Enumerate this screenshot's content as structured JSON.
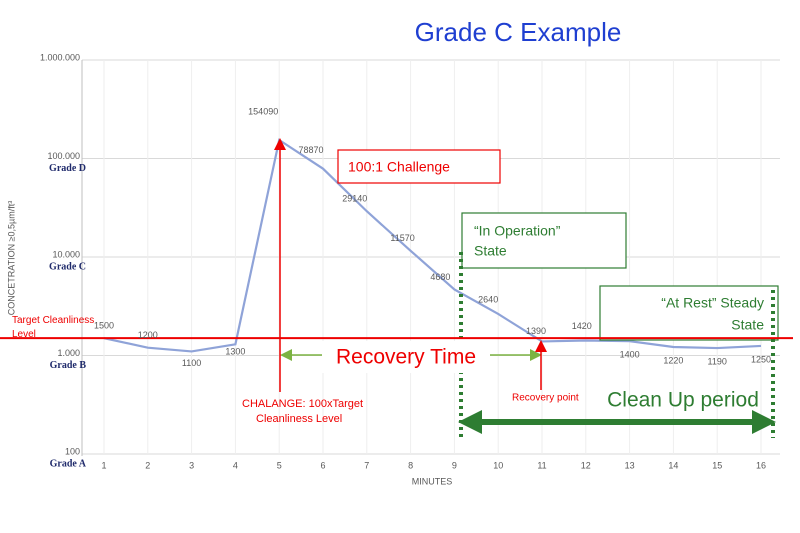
{
  "chart_data": {
    "type": "line",
    "title": "Grade C Example",
    "x_label": "MINUTES",
    "y_label": "CONCETRATION  ≥0,5µm/ft³",
    "x": [
      1,
      2,
      3,
      4,
      5,
      6,
      7,
      8,
      9,
      10,
      11,
      12,
      13,
      14,
      15,
      16
    ],
    "xlim": [
      1,
      16
    ],
    "xticks": [
      1,
      2,
      3,
      4,
      5,
      6,
      7,
      8,
      9,
      10,
      11,
      12,
      13,
      14,
      15,
      16
    ],
    "series": [
      {
        "color": "#8fa3d8",
        "values": [
          1500,
          1200,
          1100,
          1300,
          154090,
          78870,
          29140,
          11570,
          4680,
          2640,
          1390,
          1420,
          1400,
          1220,
          1190,
          1250
        ]
      }
    ],
    "log_y": true,
    "ylim": [
      100,
      1000000
    ],
    "yticks": [
      100,
      {
        "value": 1000,
        "label": "1.000"
      },
      {
        "value": 10000,
        "label": "10.000"
      },
      {
        "value": 100000,
        "label": "100.000"
      },
      {
        "value": 1000000,
        "label": "1.000.000"
      }
    ],
    "grid": true,
    "grade_labels": [
      {
        "value": 100,
        "label": "Grade A"
      },
      {
        "value": 1000,
        "label": "Grade B"
      },
      {
        "value": 10000,
        "label": "Grade C"
      },
      {
        "value": 100000,
        "label": "Grade D"
      }
    ],
    "target_line": {
      "value": 1500,
      "lines": [
        "Target Cleanliness",
        "Level"
      ]
    },
    "annotations": {
      "challenge_box": "100:1 Challenge",
      "operation_box": [
        "“In Operation”",
        "State"
      ],
      "rest_box": [
        "“At Rest” Steady",
        "State"
      ],
      "recovery_time": "Recovery Time",
      "challenge_note": [
        "CHALANGE: 100xTarget",
        "Cleanliness Level"
      ],
      "recovery_point": "Recovery point",
      "cleanup": "Clean Up period"
    }
  }
}
